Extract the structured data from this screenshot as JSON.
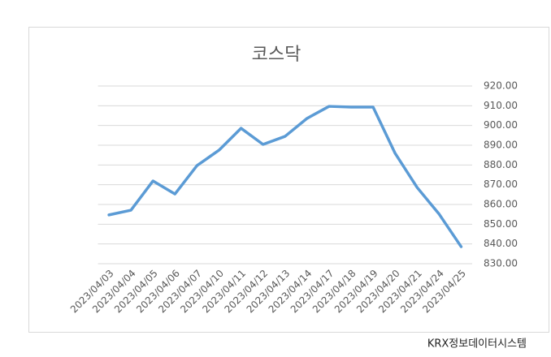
{
  "chart_data": {
    "type": "line",
    "title": "코스닥",
    "categories": [
      "2023/04/03",
      "2023/04/04",
      "2023/04/05",
      "2023/04/06",
      "2023/04/07",
      "2023/04/10",
      "2023/04/11",
      "2023/04/12",
      "2023/04/13",
      "2023/04/14",
      "2023/04/17",
      "2023/04/18",
      "2023/04/19",
      "2023/04/20",
      "2023/04/21",
      "2023/04/24",
      "2023/04/25"
    ],
    "values": [
      854.7,
      857.1,
      871.9,
      865.3,
      879.7,
      887.5,
      898.6,
      890.4,
      894.5,
      903.6,
      909.7,
      909.3,
      909.3,
      885.9,
      868.6,
      855.1,
      838.6
    ],
    "color": "#5b9bd5",
    "ylim": [
      830,
      920
    ],
    "yticks": [
      {
        "value": 830,
        "label": "830.00"
      },
      {
        "value": 840,
        "label": "840.00"
      },
      {
        "value": 850,
        "label": "850.00"
      },
      {
        "value": 860,
        "label": "860.00"
      },
      {
        "value": 870,
        "label": "870.00"
      },
      {
        "value": 880,
        "label": "880.00"
      },
      {
        "value": 890,
        "label": "890.00"
      },
      {
        "value": 900,
        "label": "900.00"
      },
      {
        "value": 910,
        "label": "910.00"
      },
      {
        "value": 920,
        "label": "920.00"
      }
    ],
    "grid": true,
    "source": "KRX정보데이터시스템"
  }
}
